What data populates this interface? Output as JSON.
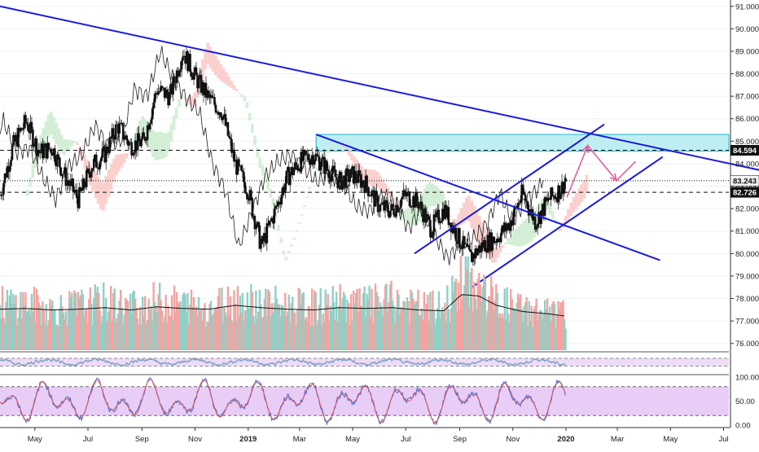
{
  "chart_data": [
    {
      "type": "line",
      "name_in_image": "",
      "price_axis": {
        "ylim": [
          75.7,
          91.1
        ],
        "ticks": [
          "76.000",
          "77.000",
          "78.000",
          "79.000",
          "80.000",
          "81.000",
          "82.000",
          "83.000",
          "84.000",
          "85.000",
          "86.000",
          "87.000",
          "88.000",
          "89.000",
          "90.000",
          "91.000"
        ]
      },
      "time_axis": {
        "ticks": [
          "May",
          "Jul",
          "Sep",
          "Nov",
          "2019",
          "Mar",
          "May",
          "Jul",
          "Sep",
          "Nov",
          "2020",
          "Mar",
          "May",
          "Jul"
        ],
        "range_days": [
          -40,
          610
        ],
        "tick_days": [
          0,
          61,
          123,
          184,
          245,
          304,
          365,
          426,
          488,
          549,
          610,
          669,
          730,
          791
        ],
        "bold_ticks": [
          "2019",
          "2020"
        ]
      },
      "price_labels": [
        {
          "text": "84.594",
          "value": 84.594,
          "style": "dark"
        },
        {
          "text": "83.243",
          "value": 83.243,
          "style": "light"
        },
        {
          "text": "82.726",
          "value": 82.726,
          "style": "dark"
        }
      ],
      "reference_lines": [
        {
          "value": 84.594,
          "style": "dashed"
        },
        {
          "value": 83.243,
          "style": "dotted"
        },
        {
          "value": 82.726,
          "style": "dashed"
        }
      ],
      "zones": [
        {
          "from_day": 323,
          "to_day": 880,
          "low": 84.55,
          "high": 85.3,
          "color": "#bfeef2",
          "border": "#22b8cf"
        }
      ],
      "trendlines": [
        {
          "from": [
            -40,
            91.0
          ],
          "to": [
            840,
            83.65
          ],
          "color": "#1a1adb"
        },
        {
          "from": [
            323,
            85.3
          ],
          "to": [
            718,
            79.7
          ],
          "color": "#1a1adb"
        },
        {
          "from": [
            436,
            80.0
          ],
          "to": [
            654,
            85.75
          ],
          "color": "#1a1adb"
        },
        {
          "from": [
            502,
            78.5
          ],
          "to": [
            721,
            84.3
          ],
          "color": "#1a1adb"
        }
      ],
      "projection": {
        "points": [
          [
            611,
            82.5
          ],
          [
            635,
            84.8
          ],
          [
            668,
            83.25
          ],
          [
            690,
            84.1
          ]
        ],
        "color": "#e05a9b"
      },
      "close_series": {
        "days": [
          -40,
          -25,
          -10,
          5,
          20,
          35,
          50,
          65,
          80,
          95,
          110,
          125,
          140,
          155,
          170,
          185,
          200,
          215,
          230,
          245,
          260,
          275,
          290,
          305,
          320,
          335,
          350,
          365,
          380,
          395,
          410,
          425,
          440,
          455,
          470,
          485,
          500,
          515,
          530,
          545,
          560,
          575,
          590,
          605,
          610
        ],
        "values": [
          82.6,
          84.8,
          85.9,
          84.5,
          84.7,
          83.4,
          82.4,
          83.9,
          84.4,
          85.7,
          84.8,
          85.0,
          87.3,
          87.0,
          89.0,
          87.8,
          86.9,
          86.3,
          84.0,
          82.8,
          80.3,
          81.8,
          83.4,
          84.1,
          84.4,
          83.8,
          83.2,
          83.5,
          83.1,
          82.1,
          81.9,
          82.6,
          82.3,
          81.1,
          82.0,
          80.8,
          79.8,
          80.4,
          80.7,
          81.3,
          82.7,
          81.4,
          82.4,
          82.9,
          83.4
        ]
      },
      "volume": {
        "days": [
          -40,
          -10,
          20,
          50,
          80,
          110,
          140,
          170,
          200,
          230,
          260,
          290,
          320,
          350,
          380,
          410,
          440,
          470,
          490,
          510,
          530,
          560,
          590,
          610
        ],
        "values": [
          58,
          60,
          52,
          56,
          61,
          55,
          62,
          58,
          54,
          66,
          60,
          57,
          55,
          60,
          58,
          62,
          55,
          53,
          88,
          80,
          62,
          52,
          48,
          45
        ],
        "ma": [
          53,
          54,
          52,
          53,
          55,
          52,
          56,
          54,
          53,
          58,
          55,
          53,
          52,
          55,
          54,
          55,
          52,
          51,
          72,
          70,
          58,
          50,
          47,
          44
        ]
      },
      "oscillator_1": {
        "band": [
          0.35,
          0.75
        ]
      },
      "oscillator_2": {
        "ticks": [
          "100.00",
          "50.00",
          "0.00"
        ],
        "band_values": [
          80,
          20
        ]
      }
    }
  ]
}
